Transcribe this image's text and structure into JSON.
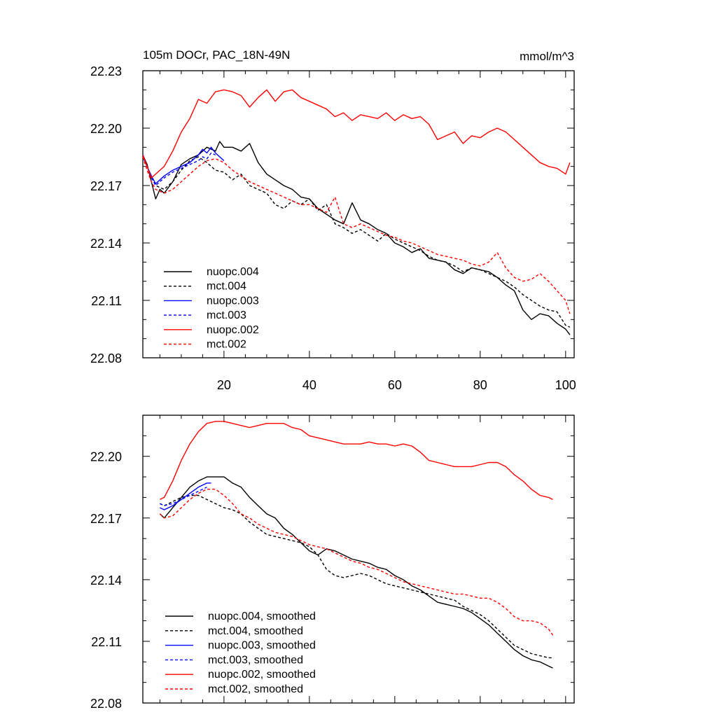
{
  "chart_data": [
    {
      "type": "line",
      "title": "105m DOCr, PAC_18N-49N",
      "units": "mmol/m^3",
      "xlim": [
        1,
        102
      ],
      "ylim": [
        22.08,
        22.23
      ],
      "xticks": [
        20,
        40,
        60,
        80,
        100
      ],
      "yticks": [
        22.08,
        22.11,
        22.14,
        22.17,
        22.2,
        22.23
      ],
      "grid": false,
      "legend_position": "bottom-left",
      "series": [
        {
          "name": "nuopc.004",
          "color": "#000000",
          "dash": false,
          "x": [
            1,
            2,
            3,
            4,
            5,
            6,
            8,
            10,
            12,
            14,
            16,
            18,
            19,
            20,
            22,
            24,
            26,
            28,
            30,
            32,
            34,
            36,
            38,
            40,
            42,
            44,
            46,
            48,
            50,
            52,
            54,
            56,
            58,
            60,
            62,
            64,
            66,
            68,
            70,
            72,
            74,
            76,
            78,
            80,
            82,
            84,
            86,
            88,
            90,
            92,
            94,
            96,
            98,
            100,
            101
          ],
          "y": [
            22.186,
            22.181,
            22.172,
            22.163,
            22.168,
            22.166,
            22.172,
            22.181,
            22.184,
            22.186,
            22.19,
            22.188,
            22.193,
            22.19,
            22.19,
            22.188,
            22.192,
            22.182,
            22.176,
            22.173,
            22.17,
            22.168,
            22.164,
            22.163,
            22.158,
            22.155,
            22.152,
            22.15,
            22.161,
            22.152,
            22.15,
            22.147,
            22.145,
            22.14,
            22.138,
            22.135,
            22.137,
            22.132,
            22.131,
            22.13,
            22.126,
            22.124,
            22.127,
            22.126,
            22.125,
            22.122,
            22.118,
            22.115,
            22.105,
            22.1,
            22.103,
            22.102,
            22.098,
            22.095,
            22.092
          ]
        },
        {
          "name": "mct.004",
          "color": "#000000",
          "dash": true,
          "x": [
            1,
            2,
            3,
            4,
            6,
            8,
            10,
            12,
            14,
            16,
            18,
            20,
            22,
            24,
            26,
            28,
            30,
            32,
            34,
            36,
            38,
            40,
            42,
            44,
            46,
            48,
            50,
            52,
            54,
            56,
            58,
            60,
            62,
            64,
            66,
            68,
            70,
            72,
            74,
            76,
            78,
            80,
            82,
            84,
            86,
            88,
            90,
            92,
            94,
            96,
            98,
            100,
            101
          ],
          "y": [
            22.186,
            22.18,
            22.175,
            22.17,
            22.168,
            22.172,
            22.178,
            22.183,
            22.185,
            22.182,
            22.178,
            22.177,
            22.173,
            22.176,
            22.17,
            22.168,
            22.166,
            22.16,
            22.158,
            22.162,
            22.16,
            22.163,
            22.157,
            22.16,
            22.15,
            22.148,
            22.145,
            22.147,
            22.144,
            22.141,
            22.145,
            22.142,
            22.14,
            22.138,
            22.136,
            22.133,
            22.131,
            22.13,
            22.128,
            22.125,
            22.127,
            22.126,
            22.124,
            22.122,
            22.12,
            22.117,
            22.113,
            22.11,
            22.107,
            22.105,
            22.104,
            22.097,
            22.096
          ]
        },
        {
          "name": "nuopc.003",
          "color": "#0000ff",
          "dash": false,
          "x": [
            1,
            2,
            3,
            4,
            5,
            6,
            8,
            10,
            12,
            14,
            15,
            16,
            17,
            18,
            19,
            20
          ],
          "y": [
            22.185,
            22.18,
            22.175,
            22.171,
            22.173,
            22.175,
            22.178,
            22.18,
            22.182,
            22.186,
            22.189,
            22.187,
            22.19,
            22.187,
            22.185,
            22.183
          ]
        },
        {
          "name": "mct.003",
          "color": "#0000ff",
          "dash": true,
          "x": [
            1,
            2,
            3,
            4,
            5,
            6,
            8,
            10,
            12,
            14,
            15,
            16,
            17,
            18
          ],
          "y": [
            22.186,
            22.18,
            22.174,
            22.17,
            22.172,
            22.174,
            22.177,
            22.179,
            22.181,
            22.183,
            22.185,
            22.184,
            22.187,
            22.186
          ]
        },
        {
          "name": "nuopc.002",
          "color": "#ff0000",
          "dash": false,
          "x": [
            1,
            2,
            3,
            4,
            5,
            6,
            8,
            10,
            12,
            14,
            16,
            18,
            20,
            22,
            24,
            26,
            28,
            30,
            32,
            34,
            36,
            38,
            40,
            42,
            44,
            46,
            48,
            50,
            52,
            54,
            56,
            58,
            60,
            62,
            64,
            66,
            68,
            70,
            72,
            74,
            76,
            78,
            80,
            82,
            84,
            86,
            88,
            90,
            92,
            94,
            96,
            98,
            100,
            101
          ],
          "y": [
            22.186,
            22.18,
            22.174,
            22.176,
            22.178,
            22.18,
            22.188,
            22.198,
            22.205,
            22.215,
            22.213,
            22.219,
            22.22,
            22.219,
            22.217,
            22.211,
            22.216,
            22.22,
            22.214,
            22.219,
            22.22,
            22.216,
            22.214,
            22.212,
            22.21,
            22.206,
            22.208,
            22.204,
            22.207,
            22.206,
            22.205,
            22.208,
            22.204,
            22.207,
            22.205,
            22.206,
            22.202,
            22.194,
            22.196,
            22.198,
            22.192,
            22.196,
            22.195,
            22.198,
            22.2,
            22.198,
            22.194,
            22.19,
            22.186,
            22.182,
            22.18,
            22.179,
            22.176,
            22.182
          ]
        },
        {
          "name": "mct.002",
          "color": "#ff0000",
          "dash": true,
          "x": [
            1,
            2,
            3,
            4,
            6,
            8,
            10,
            12,
            14,
            16,
            18,
            20,
            22,
            24,
            26,
            28,
            30,
            32,
            34,
            36,
            38,
            40,
            42,
            44,
            46,
            48,
            50,
            52,
            54,
            56,
            58,
            60,
            62,
            64,
            66,
            68,
            70,
            72,
            74,
            76,
            78,
            80,
            82,
            84,
            86,
            88,
            90,
            92,
            94,
            96,
            98,
            100,
            101
          ],
          "y": [
            22.185,
            22.178,
            22.172,
            22.168,
            22.166,
            22.168,
            22.172,
            22.176,
            22.18,
            22.183,
            22.184,
            22.182,
            22.178,
            22.175,
            22.172,
            22.17,
            22.168,
            22.166,
            22.164,
            22.162,
            22.16,
            22.16,
            22.158,
            22.156,
            22.164,
            22.15,
            22.148,
            22.15,
            22.148,
            22.146,
            22.144,
            22.143,
            22.141,
            22.14,
            22.138,
            22.136,
            22.134,
            22.133,
            22.132,
            22.131,
            22.129,
            22.128,
            22.13,
            22.135,
            22.127,
            22.122,
            22.12,
            22.121,
            22.124,
            22.12,
            22.115,
            22.11,
            22.103
          ]
        }
      ]
    },
    {
      "type": "line",
      "xlim": [
        1,
        102
      ],
      "ylim": [
        22.08,
        22.22
      ],
      "xticks": [
        20,
        40,
        60,
        80,
        100
      ],
      "yticks": [
        22.08,
        22.11,
        22.14,
        22.17,
        22.2
      ],
      "grid": false,
      "legend_position": "bottom-left",
      "series": [
        {
          "name": "nuopc.004, smoothed",
          "color": "#000000",
          "dash": false,
          "x": [
            5,
            6,
            8,
            10,
            12,
            14,
            16,
            18,
            20,
            22,
            24,
            26,
            28,
            30,
            32,
            34,
            36,
            38,
            40,
            42,
            44,
            46,
            48,
            50,
            52,
            54,
            56,
            58,
            60,
            62,
            64,
            66,
            68,
            70,
            72,
            74,
            76,
            78,
            80,
            82,
            84,
            86,
            88,
            90,
            92,
            94,
            96,
            97
          ],
          "y": [
            22.172,
            22.17,
            22.175,
            22.18,
            22.185,
            22.188,
            22.19,
            22.19,
            22.19,
            22.187,
            22.185,
            22.18,
            22.176,
            22.172,
            22.17,
            22.165,
            22.162,
            22.158,
            22.154,
            22.152,
            22.155,
            22.154,
            22.152,
            22.15,
            22.149,
            22.148,
            22.146,
            22.145,
            22.142,
            22.14,
            22.137,
            22.135,
            22.132,
            22.129,
            22.128,
            22.127,
            22.126,
            22.124,
            22.121,
            22.118,
            22.114,
            22.11,
            22.106,
            22.103,
            22.101,
            22.1,
            22.098,
            22.097
          ]
        },
        {
          "name": "mct.004, smoothed",
          "color": "#000000",
          "dash": true,
          "x": [
            5,
            6,
            8,
            10,
            12,
            14,
            16,
            18,
            20,
            22,
            24,
            26,
            28,
            30,
            32,
            34,
            36,
            38,
            40,
            42,
            44,
            46,
            48,
            50,
            52,
            54,
            56,
            58,
            60,
            62,
            64,
            66,
            68,
            70,
            72,
            74,
            76,
            78,
            80,
            82,
            84,
            86,
            88,
            90,
            92,
            94,
            96,
            97
          ],
          "y": [
            22.177,
            22.176,
            22.178,
            22.18,
            22.181,
            22.181,
            22.179,
            22.177,
            22.175,
            22.174,
            22.172,
            22.168,
            22.165,
            22.162,
            22.161,
            22.16,
            22.159,
            22.158,
            22.156,
            22.152,
            22.145,
            22.142,
            22.141,
            22.142,
            22.143,
            22.142,
            22.14,
            22.138,
            22.137,
            22.136,
            22.135,
            22.134,
            22.133,
            22.132,
            22.131,
            22.13,
            22.127,
            22.125,
            22.123,
            22.12,
            22.116,
            22.112,
            22.108,
            22.106,
            22.104,
            22.103,
            22.102,
            22.102
          ]
        },
        {
          "name": "nuopc.003, smoothed",
          "color": "#0000ff",
          "dash": false,
          "x": [
            5,
            6,
            8,
            10,
            12,
            14,
            16,
            17
          ],
          "y": [
            22.175,
            22.174,
            22.176,
            22.179,
            22.182,
            22.185,
            22.187,
            22.187
          ]
        },
        {
          "name": "mct.003, smoothed",
          "color": "#0000ff",
          "dash": true,
          "x": [
            5,
            6,
            8,
            10,
            12,
            14,
            16
          ],
          "y": [
            22.177,
            22.176,
            22.177,
            22.179,
            22.181,
            22.183,
            22.185
          ]
        },
        {
          "name": "nuopc.002, smoothed",
          "color": "#ff0000",
          "dash": false,
          "x": [
            5,
            6,
            8,
            10,
            12,
            14,
            16,
            18,
            20,
            22,
            24,
            26,
            28,
            30,
            32,
            34,
            36,
            38,
            40,
            42,
            44,
            46,
            48,
            50,
            52,
            54,
            56,
            58,
            60,
            62,
            64,
            66,
            68,
            70,
            72,
            74,
            76,
            78,
            80,
            82,
            84,
            86,
            88,
            90,
            92,
            94,
            96,
            97
          ],
          "y": [
            22.179,
            22.18,
            22.188,
            22.198,
            22.206,
            22.212,
            22.216,
            22.217,
            22.217,
            22.216,
            22.215,
            22.214,
            22.215,
            22.216,
            22.216,
            22.216,
            22.214,
            22.213,
            22.21,
            22.209,
            22.208,
            22.207,
            22.206,
            22.206,
            22.206,
            22.207,
            22.206,
            22.206,
            22.205,
            22.206,
            22.205,
            22.202,
            22.198,
            22.197,
            22.196,
            22.195,
            22.195,
            22.195,
            22.196,
            22.197,
            22.197,
            22.195,
            22.191,
            22.188,
            22.184,
            22.181,
            22.18,
            22.179
          ]
        },
        {
          "name": "mct.002, smoothed",
          "color": "#ff0000",
          "dash": true,
          "x": [
            5,
            6,
            8,
            10,
            12,
            14,
            16,
            18,
            20,
            22,
            24,
            26,
            28,
            30,
            32,
            34,
            36,
            38,
            40,
            42,
            44,
            46,
            48,
            50,
            52,
            54,
            56,
            58,
            60,
            62,
            64,
            66,
            68,
            70,
            72,
            74,
            76,
            78,
            80,
            82,
            84,
            86,
            88,
            90,
            92,
            94,
            96,
            97
          ],
          "y": [
            22.172,
            22.17,
            22.171,
            22.175,
            22.179,
            22.182,
            22.184,
            22.184,
            22.181,
            22.177,
            22.172,
            22.17,
            22.167,
            22.165,
            22.163,
            22.162,
            22.161,
            22.159,
            22.157,
            22.156,
            22.155,
            22.153,
            22.151,
            22.149,
            22.148,
            22.146,
            22.145,
            22.143,
            22.141,
            22.139,
            22.138,
            22.137,
            22.136,
            22.135,
            22.134,
            22.133,
            22.133,
            22.132,
            22.131,
            22.131,
            22.129,
            22.126,
            22.122,
            22.12,
            22.12,
            22.119,
            22.116,
            22.113
          ]
        }
      ]
    }
  ]
}
